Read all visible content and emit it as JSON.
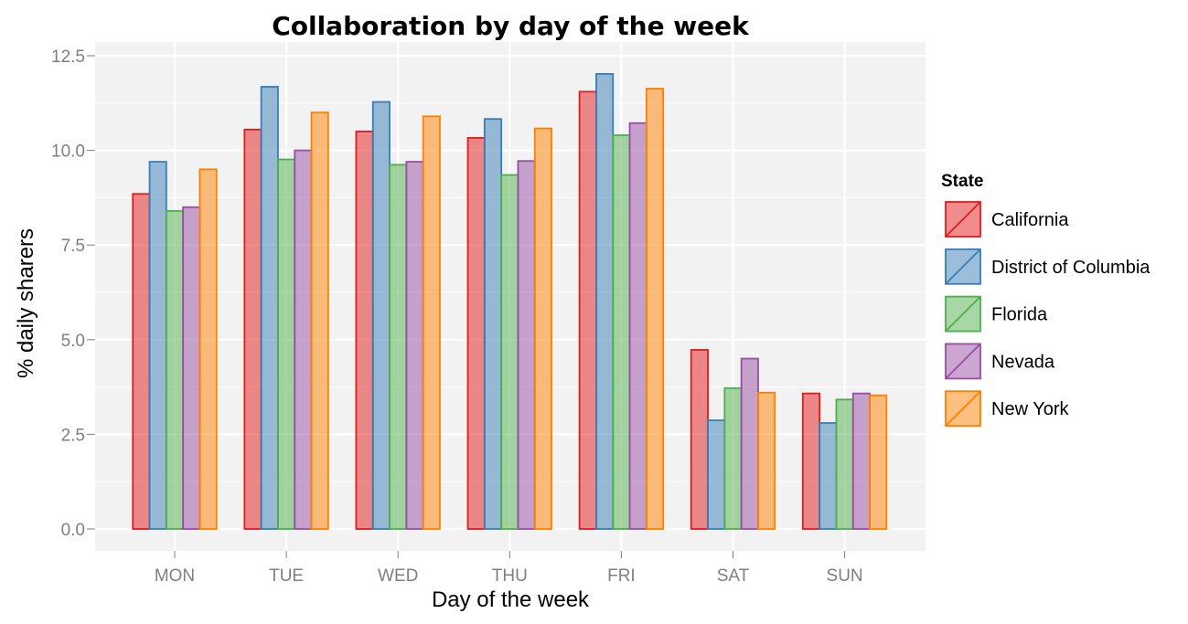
{
  "chart_data": {
    "type": "bar",
    "title": "Collaboration by day of the week",
    "xlabel": "Day of the week",
    "ylabel": "% daily sharers",
    "ylim": [
      0,
      13
    ],
    "yticks": [
      "0.0",
      "2.5",
      "5.0",
      "7.5",
      "10.0",
      "12.5"
    ],
    "categories": [
      "MON",
      "TUE",
      "WED",
      "THU",
      "FRI",
      "SAT",
      "SUN"
    ],
    "grid": true,
    "legend_position": "right",
    "legend_title": "State",
    "series": [
      {
        "name": "California",
        "color": "#e41a1c",
        "values": [
          8.85,
          10.55,
          10.5,
          10.33,
          11.55,
          4.73,
          3.58
        ]
      },
      {
        "name": "District of Columbia",
        "color": "#377eb8",
        "values": [
          9.7,
          11.68,
          11.28,
          10.83,
          12.02,
          2.87,
          2.8
        ]
      },
      {
        "name": "Florida",
        "color": "#4daf4a",
        "values": [
          8.4,
          9.76,
          9.62,
          9.35,
          10.4,
          3.72,
          3.42
        ]
      },
      {
        "name": "Nevada",
        "color": "#984ea3",
        "values": [
          8.5,
          10.0,
          9.7,
          9.72,
          10.72,
          4.5,
          3.58
        ]
      },
      {
        "name": "New York",
        "color": "#ff7f00",
        "values": [
          9.5,
          11.0,
          10.9,
          10.58,
          11.63,
          3.6,
          3.53
        ]
      }
    ]
  }
}
